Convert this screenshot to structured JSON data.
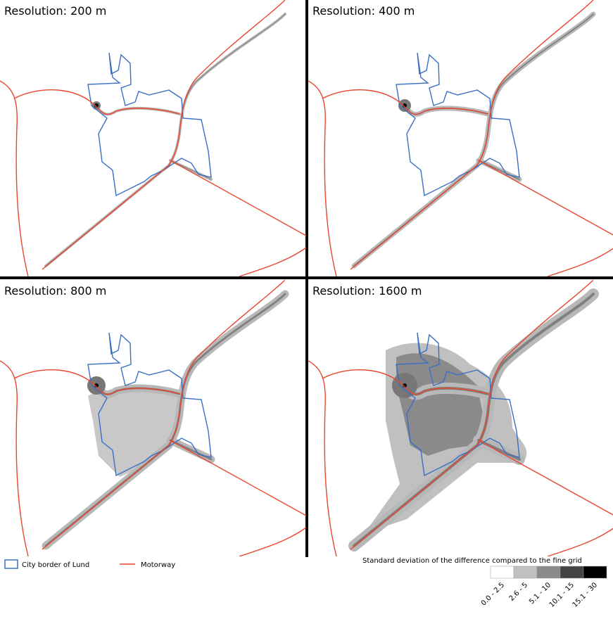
{
  "panels": [
    {
      "title": "Resolution: 200 m"
    },
    {
      "title": "Resolution: 400 m"
    },
    {
      "title": "Resolution: 800 m"
    },
    {
      "title": "Resolution: 1600 m"
    }
  ],
  "legend": {
    "items": [
      {
        "label": "City border of Lund"
      },
      {
        "label": "Motorway"
      }
    ],
    "title": "Standard deviation of the difference compared to the fine grid",
    "classes": [
      {
        "label": "0.0 - 2.5",
        "color": "#ffffff"
      },
      {
        "label": "2.6 - 5",
        "color": "#c0c0c0"
      },
      {
        "label": "5.1 - 10",
        "color": "#8a8a8a"
      },
      {
        "label": "10.1 - 15",
        "color": "#444444"
      },
      {
        "label": "15.1 - 30",
        "color": "#000000"
      }
    ]
  }
}
